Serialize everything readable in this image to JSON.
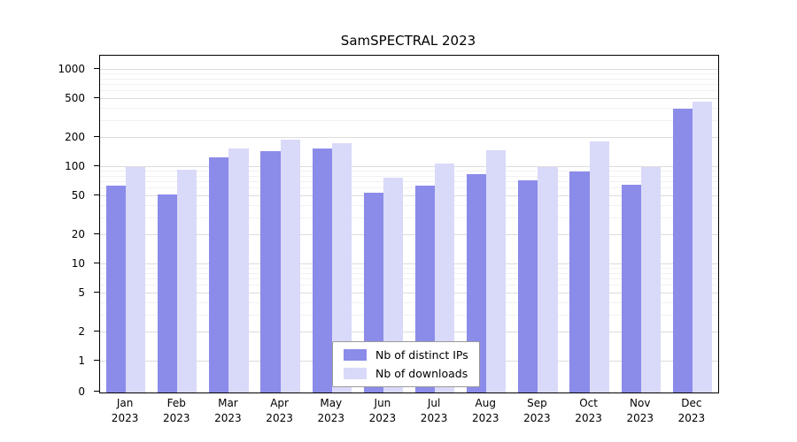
{
  "chart_data": {
    "type": "bar",
    "title": "SamSPECTRAL 2023",
    "yscale": "log",
    "ylim": [
      0,
      1000
    ],
    "yticks": [
      0,
      1,
      2,
      5,
      10,
      20,
      50,
      100,
      200,
      500,
      1000
    ],
    "grid": true,
    "legend_position": "bottom-center",
    "xlabel": "",
    "ylabel": "",
    "categories": [
      "Jan",
      "Feb",
      "Mar",
      "Apr",
      "May",
      "Jun",
      "Jul",
      "Aug",
      "Sep",
      "Oct",
      "Nov",
      "Dec"
    ],
    "year": "2023",
    "series": [
      {
        "name": "Nb of distinct IPs",
        "color": "#8b8bea",
        "values": [
          65,
          52,
          125,
          145,
          155,
          55,
          65,
          85,
          73,
          90,
          66,
          400
        ]
      },
      {
        "name": "Nb of downloads",
        "color": "#d9d9f9",
        "values": [
          100,
          93,
          155,
          190,
          175,
          78,
          108,
          150,
          100,
          185,
          100,
          470
        ]
      }
    ]
  }
}
